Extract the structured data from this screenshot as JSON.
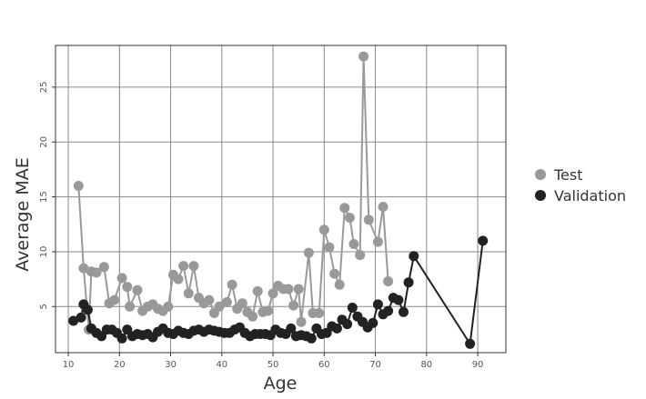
{
  "chart_data": {
    "type": "line",
    "title": "",
    "xlabel": "Age",
    "ylabel": "Average MAE",
    "xlim": [
      7.5,
      95.5
    ],
    "ylim": [
      0.8,
      28.8
    ],
    "xticks": [
      10,
      20,
      30,
      40,
      50,
      60,
      70,
      80,
      90
    ],
    "yticks": [
      5,
      10,
      15,
      20,
      25
    ],
    "grid": true,
    "legend_position": "right",
    "colors": {
      "Test": "#999999",
      "Validation": "#222222"
    },
    "series": [
      {
        "name": "Test",
        "points": [
          [
            12,
            16.0
          ],
          [
            13,
            8.5
          ],
          [
            14,
            2.9
          ],
          [
            14.5,
            8.2
          ],
          [
            15.5,
            8.1
          ],
          [
            17,
            8.6
          ],
          [
            18,
            5.3
          ],
          [
            19,
            5.6
          ],
          [
            20.5,
            7.6
          ],
          [
            21.5,
            6.8
          ],
          [
            22,
            5.0
          ],
          [
            23.5,
            6.5
          ],
          [
            24.5,
            4.6
          ],
          [
            25.5,
            5.0
          ],
          [
            26.5,
            5.2
          ],
          [
            27.5,
            4.8
          ],
          [
            28.5,
            4.6
          ],
          [
            29.5,
            5.0
          ],
          [
            30.5,
            7.9
          ],
          [
            31.5,
            7.5
          ],
          [
            32.5,
            8.7
          ],
          [
            33.5,
            6.2
          ],
          [
            34.5,
            8.7
          ],
          [
            35.5,
            5.8
          ],
          [
            36.5,
            5.3
          ],
          [
            37.5,
            5.6
          ],
          [
            38.5,
            4.4
          ],
          [
            39.5,
            5.0
          ],
          [
            41,
            5.4
          ],
          [
            42,
            7.0
          ],
          [
            43,
            4.8
          ],
          [
            44,
            5.3
          ],
          [
            45,
            4.5
          ],
          [
            46,
            4.1
          ],
          [
            47,
            6.4
          ],
          [
            48,
            4.5
          ],
          [
            49,
            4.6
          ],
          [
            50,
            6.2
          ],
          [
            51,
            6.9
          ],
          [
            52,
            6.6
          ],
          [
            53,
            6.6
          ],
          [
            54,
            5.1
          ],
          [
            55,
            6.6
          ],
          [
            55.5,
            3.6
          ],
          [
            57,
            9.9
          ],
          [
            57.8,
            4.4
          ],
          [
            59,
            4.4
          ],
          [
            60,
            12.0
          ],
          [
            61,
            10.4
          ],
          [
            62,
            8.0
          ],
          [
            63,
            7.0
          ],
          [
            64,
            14.0
          ],
          [
            65,
            13.1
          ],
          [
            65.8,
            10.7
          ],
          [
            67,
            9.7
          ],
          [
            67.7,
            27.8
          ],
          [
            68.7,
            12.9
          ],
          [
            70.5,
            10.9
          ],
          [
            71.5,
            14.1
          ],
          [
            72.5,
            7.3
          ]
        ]
      },
      {
        "name": "Validation",
        "points": [
          [
            11,
            3.7
          ],
          [
            12.5,
            4.0
          ],
          [
            13,
            5.2
          ],
          [
            13.8,
            4.7
          ],
          [
            14.5,
            3.0
          ],
          [
            15.5,
            2.6
          ],
          [
            16.5,
            2.3
          ],
          [
            17.5,
            2.9
          ],
          [
            18.5,
            2.9
          ],
          [
            19.5,
            2.6
          ],
          [
            20.5,
            2.1
          ],
          [
            21.5,
            2.9
          ],
          [
            22.5,
            2.3
          ],
          [
            23.5,
            2.5
          ],
          [
            24.5,
            2.4
          ],
          [
            25.5,
            2.5
          ],
          [
            26.5,
            2.2
          ],
          [
            27.5,
            2.7
          ],
          [
            28.5,
            3.0
          ],
          [
            29.5,
            2.6
          ],
          [
            30.5,
            2.5
          ],
          [
            31.5,
            2.8
          ],
          [
            32.5,
            2.6
          ],
          [
            33.5,
            2.5
          ],
          [
            34.5,
            2.8
          ],
          [
            35.5,
            2.9
          ],
          [
            36.5,
            2.7
          ],
          [
            37.5,
            2.9
          ],
          [
            38.5,
            2.8
          ],
          [
            39.5,
            2.7
          ],
          [
            40.5,
            2.6
          ],
          [
            41.5,
            2.6
          ],
          [
            42.5,
            2.9
          ],
          [
            43.5,
            3.1
          ],
          [
            44.5,
            2.6
          ],
          [
            45.5,
            2.3
          ],
          [
            46.5,
            2.5
          ],
          [
            47.5,
            2.5
          ],
          [
            48.5,
            2.5
          ],
          [
            49.5,
            2.4
          ],
          [
            50.5,
            2.9
          ],
          [
            51.5,
            2.6
          ],
          [
            52.5,
            2.5
          ],
          [
            53.5,
            3.0
          ],
          [
            54.5,
            2.3
          ],
          [
            55.5,
            2.4
          ],
          [
            56.5,
            2.3
          ],
          [
            57.5,
            2.1
          ],
          [
            58.5,
            3.0
          ],
          [
            59.5,
            2.5
          ],
          [
            60.5,
            2.6
          ],
          [
            61.5,
            3.2
          ],
          [
            62.5,
            3.0
          ],
          [
            63.5,
            3.8
          ],
          [
            64.5,
            3.4
          ],
          [
            65.5,
            4.9
          ],
          [
            66.5,
            4.1
          ],
          [
            67.5,
            3.6
          ],
          [
            68.5,
            3.1
          ],
          [
            69.5,
            3.5
          ],
          [
            70.5,
            5.2
          ],
          [
            71.5,
            4.3
          ],
          [
            72.5,
            4.6
          ],
          [
            73.5,
            5.8
          ],
          [
            74.5,
            5.6
          ],
          [
            75.5,
            4.5
          ],
          [
            76.5,
            7.2
          ],
          [
            77.5,
            9.6
          ],
          [
            88.5,
            1.6
          ],
          [
            91,
            11.0
          ]
        ]
      }
    ]
  }
}
